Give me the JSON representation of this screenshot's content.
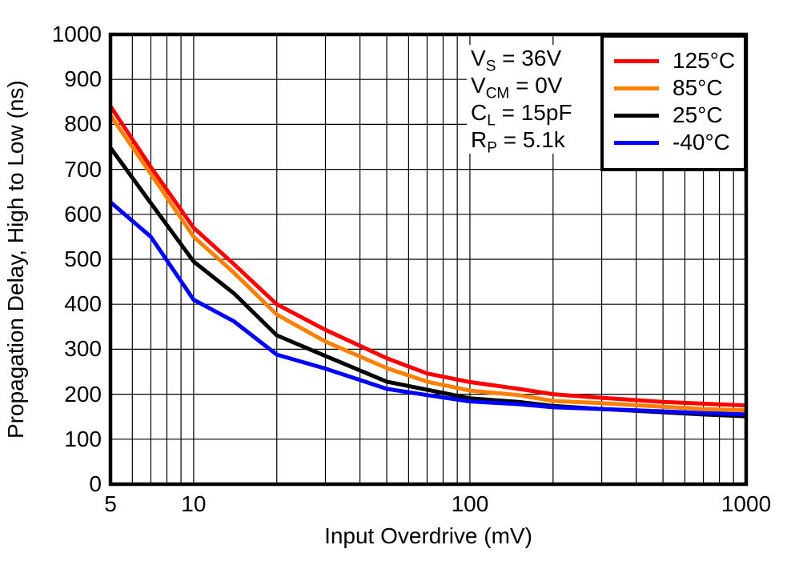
{
  "chart_data": {
    "type": "line",
    "title": "",
    "xlabel": "Input Overdrive (mV)",
    "ylabel": "Propagation Delay, High to Low (ns)",
    "xscale": "log",
    "xlim": [
      5,
      1000
    ],
    "ylim": [
      0,
      1000
    ],
    "xticks": [
      "5",
      "10",
      "100",
      "1000"
    ],
    "xtick_values": [
      5,
      10,
      100,
      1000
    ],
    "yticks": [
      0,
      100,
      200,
      300,
      400,
      500,
      600,
      700,
      800,
      900,
      1000
    ],
    "grid": "minor-log-x and major-y gridlines on, full black frame",
    "legend_position": "top-right inside plot, boxed",
    "x": [
      5,
      7,
      10,
      14,
      20,
      30,
      50,
      70,
      100,
      150,
      200,
      300,
      500,
      700,
      1000
    ],
    "series": [
      {
        "id": "125c",
        "name": "125°C",
        "color": "#ff0000",
        "values": [
          840,
          705,
          570,
          489,
          400,
          343,
          280,
          246,
          227,
          212,
          200,
          192,
          183,
          179,
          175
        ]
      },
      {
        "id": "85c",
        "name": "85°C",
        "color": "#ff8000",
        "values": [
          820,
          690,
          550,
          470,
          377,
          317,
          258,
          228,
          208,
          198,
          185,
          180,
          172,
          167,
          164
        ]
      },
      {
        "id": "25c",
        "name": "25°C",
        "color": "#000000",
        "values": [
          748,
          625,
          495,
          424,
          331,
          285,
          228,
          210,
          191,
          183,
          174,
          167,
          160,
          155,
          151
        ]
      },
      {
        "id": "minus40c",
        "name": "-40°C",
        "color": "#0000ff",
        "values": [
          627,
          550,
          410,
          362,
          288,
          257,
          212,
          198,
          184,
          178,
          171,
          167,
          162,
          158,
          155
        ]
      }
    ],
    "annotations": [
      {
        "pre": "V",
        "sub": "S",
        "post": " = 36V"
      },
      {
        "pre": "V",
        "sub": "CM",
        "post": " = 0V"
      },
      {
        "pre": "C",
        "sub": "L",
        "post": " = 15pF"
      },
      {
        "pre": "R",
        "sub": "P",
        "post": " = 5.1k"
      }
    ],
    "colors": {
      "frame": "#000000",
      "gridline": "#000000",
      "background": "#ffffff",
      "text": "#000000"
    }
  }
}
